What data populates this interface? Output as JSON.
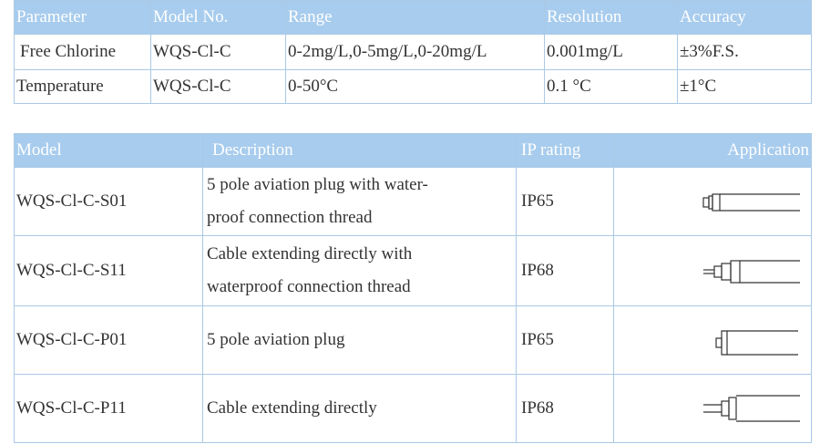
{
  "spec_table": {
    "header": [
      "Parameter",
      "Model No.",
      "Range",
      "Resolution",
      "Accuracy"
    ],
    "rows": [
      [
        "Free Chlorine",
        "WQS-Cl-C",
        "0-2mg/L,0-5mg/L,0-20mg/L",
        "0.001mg/L",
        "±3%F.S."
      ],
      [
        "Temperature",
        "WQS-Cl-C",
        "0-50°C",
        "0.1 °C",
        "±1°C"
      ]
    ]
  },
  "model_table": {
    "header": [
      "Model",
      "Description",
      "IP rating",
      "Application"
    ],
    "rows": [
      {
        "model": "WQS-Cl-C-S01",
        "description": [
          "5 pole aviation plug with water-",
          "proof connection thread"
        ],
        "ip": "IP65"
      },
      {
        "model": "WQS-Cl-C-S11",
        "description": [
          "Cable extending directly with",
          "waterproof connection thread"
        ],
        "ip": "IP68"
      },
      {
        "model": "WQS-Cl-C-P01",
        "description": [
          "5 pole aviation plug"
        ],
        "ip": "IP65"
      },
      {
        "model": "WQS-Cl-C-P11",
        "description": [
          "Cable extending directly"
        ],
        "ip": "IP68"
      }
    ]
  }
}
